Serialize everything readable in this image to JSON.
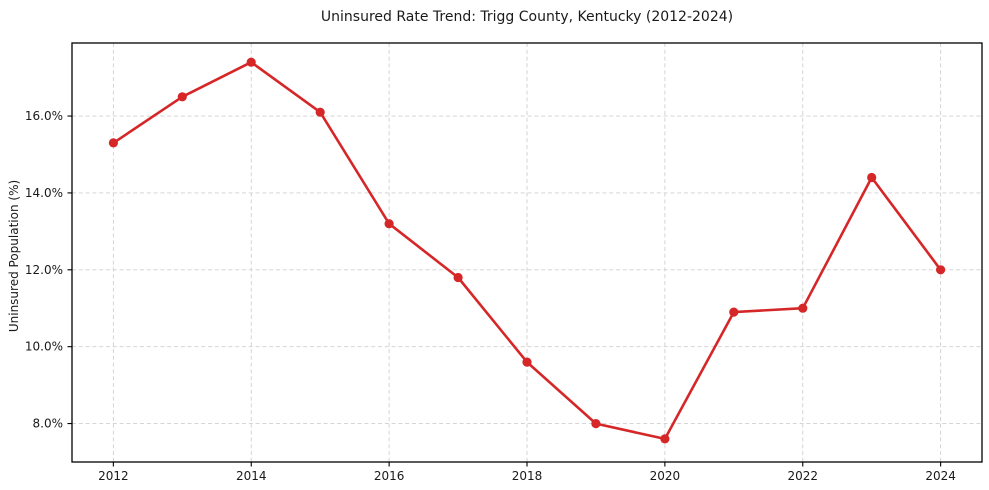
{
  "chart_data": {
    "type": "line",
    "title": "Uninsured Rate Trend: Trigg County, Kentucky (2012-2024)",
    "xlabel": "",
    "ylabel": "Uninsured Population (%)",
    "x": [
      2012,
      2013,
      2014,
      2015,
      2016,
      2017,
      2018,
      2019,
      2020,
      2021,
      2022,
      2023,
      2024
    ],
    "values": [
      15.3,
      16.5,
      17.4,
      16.1,
      13.2,
      11.8,
      9.6,
      8.0,
      7.6,
      10.9,
      11.0,
      14.4,
      12.0
    ],
    "xticks": [
      2012,
      2014,
      2016,
      2018,
      2020,
      2022,
      2024
    ],
    "xtick_labels": [
      "2012",
      "2014",
      "2016",
      "2018",
      "2020",
      "2022",
      "2024"
    ],
    "yticks": [
      8,
      10,
      12,
      14,
      16
    ],
    "ytick_labels": [
      "8.0%",
      "10.0%",
      "12.0%",
      "14.0%",
      "16.0%"
    ],
    "xlim": [
      2011.4,
      2024.6
    ],
    "ylim": [
      7.0,
      17.9
    ],
    "grid": true,
    "grid_style": "dashed",
    "legend": false,
    "line_color": "#d62728",
    "marker": "circle",
    "grid_color": "#cfcfcf",
    "axis_color": "#000000",
    "background_color": "#ffffff"
  }
}
